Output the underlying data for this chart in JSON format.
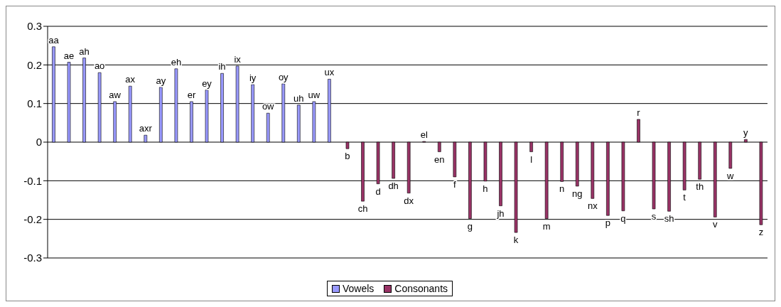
{
  "chart_data": {
    "type": "bar",
    "categories": [
      "aa",
      "ae",
      "ah",
      "ao",
      "aw",
      "ax",
      "axr",
      "ay",
      "eh",
      "er",
      "ey",
      "ih",
      "ix",
      "iy",
      "ow",
      "oy",
      "uh",
      "uw",
      "ux",
      "b",
      "ch",
      "d",
      "dh",
      "dx",
      "el",
      "en",
      "f",
      "g",
      "h",
      "jh",
      "k",
      "l",
      "m",
      "n",
      "ng",
      "nx",
      "p",
      "q",
      "r",
      "s",
      "sh",
      "t",
      "th",
      "v",
      "w",
      "y",
      "z"
    ],
    "series": [
      {
        "name": "Vowels",
        "color": "#9999ff",
        "values": [
          0.247,
          0.207,
          0.218,
          0.18,
          0.105,
          0.145,
          0.018,
          0.142,
          0.19,
          0.105,
          0.135,
          0.178,
          0.197,
          0.149,
          0.075,
          0.151,
          0.096,
          0.105,
          0.163,
          null,
          null,
          null,
          null,
          null,
          null,
          null,
          null,
          null,
          null,
          null,
          null,
          null,
          null,
          null,
          null,
          null,
          null,
          null,
          null,
          null,
          null,
          null,
          null,
          null,
          null,
          null,
          null
        ]
      },
      {
        "name": "Consonants",
        "color": "#993366",
        "values": [
          null,
          null,
          null,
          null,
          null,
          null,
          null,
          null,
          null,
          null,
          null,
          null,
          null,
          null,
          null,
          null,
          null,
          null,
          null,
          -0.017,
          -0.153,
          -0.108,
          -0.094,
          -0.132,
          0.0,
          -0.025,
          -0.09,
          -0.198,
          -0.101,
          -0.165,
          -0.234,
          -0.025,
          -0.198,
          -0.102,
          -0.114,
          -0.146,
          -0.19,
          -0.178,
          0.059,
          -0.173,
          -0.179,
          -0.124,
          -0.096,
          -0.194,
          -0.068,
          0.007,
          -0.214
        ]
      }
    ],
    "ylim": [
      -0.3,
      0.3
    ],
    "yticks": [
      {
        "value": -0.3,
        "label": "-0.3"
      },
      {
        "value": -0.2,
        "label": "-0.2"
      },
      {
        "value": -0.1,
        "label": "-0.1"
      },
      {
        "value": 0,
        "label": "0"
      },
      {
        "value": 0.1,
        "label": "0.1"
      },
      {
        "value": 0.2,
        "label": "0.2"
      },
      {
        "value": 0.3,
        "label": "0.3"
      }
    ],
    "grid": "y",
    "legend": "bottom",
    "tick_labels": "y"
  }
}
